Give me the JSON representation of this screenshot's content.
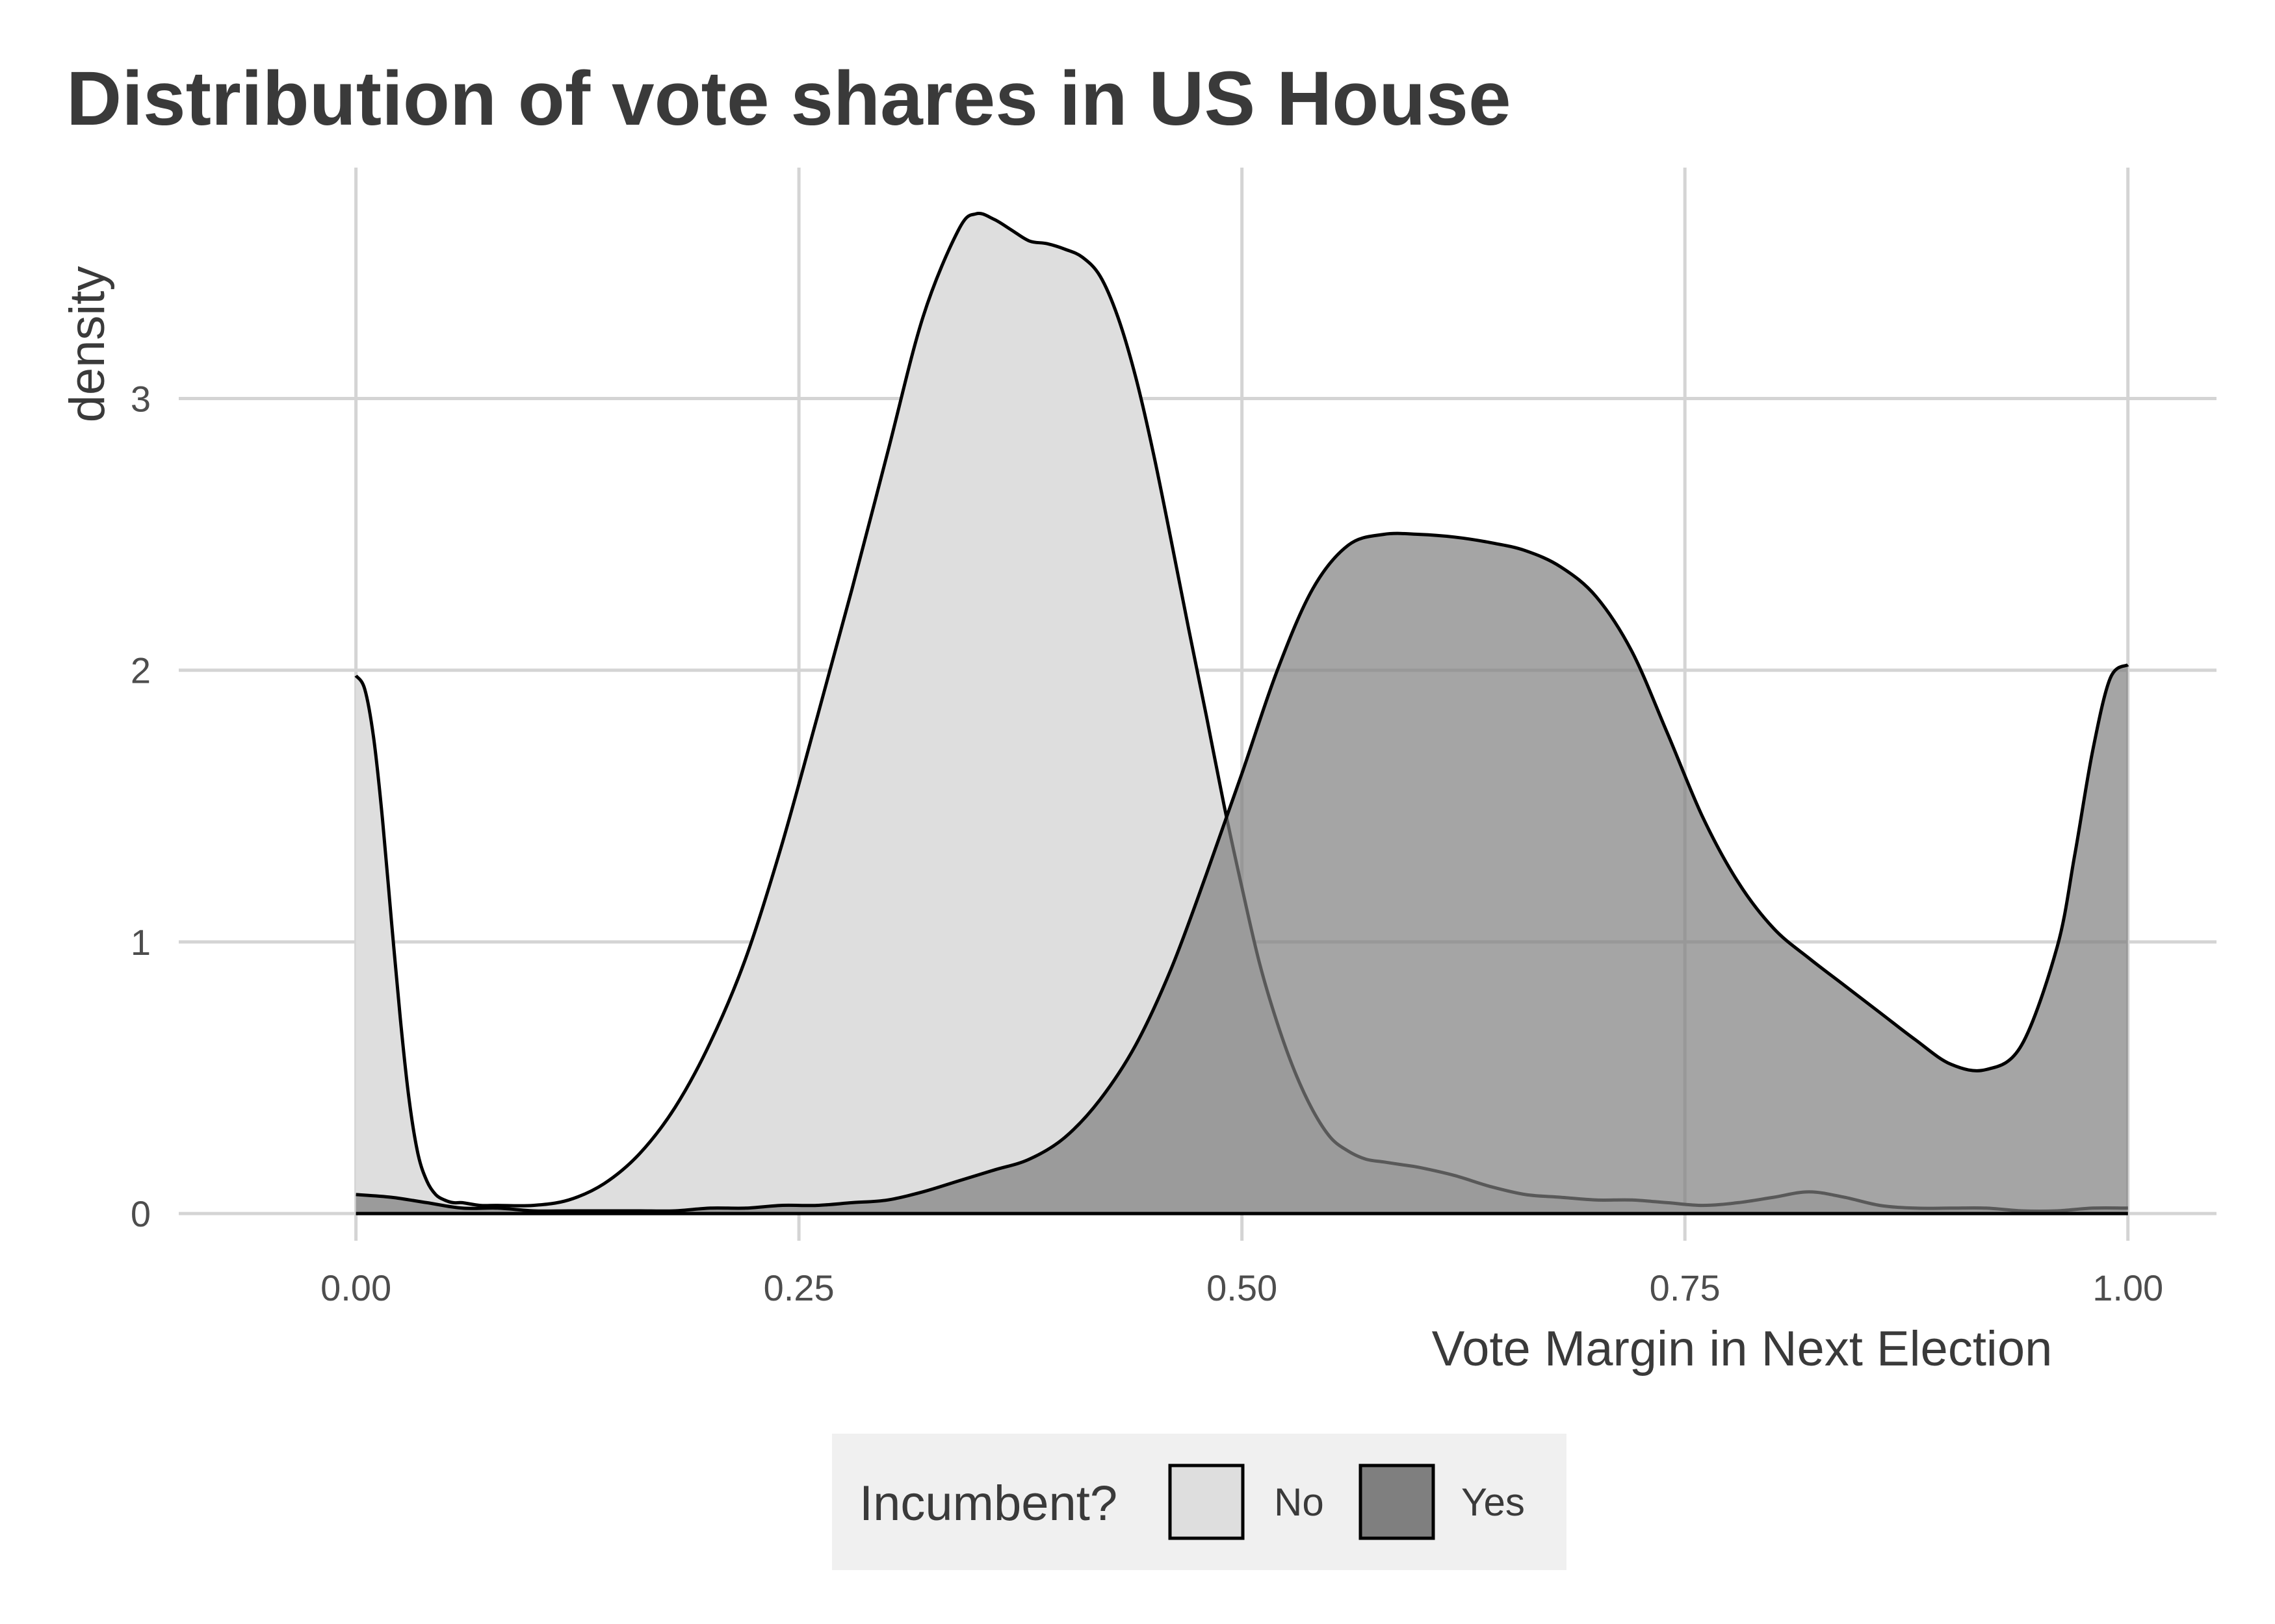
{
  "chart_data": {
    "type": "area",
    "title": "Distribution of vote shares in US House",
    "xlabel": "Vote Margin in Next Election",
    "ylabel": "density",
    "xlim": [
      -0.1,
      1.05
    ],
    "ylim": [
      -0.1,
      3.85
    ],
    "x_ticks": [
      0,
      0.25,
      0.5,
      0.75,
      1
    ],
    "x_tick_labels": [
      "0.00",
      "0.25",
      "0.50",
      "0.75",
      "1.00"
    ],
    "y_ticks": [
      0,
      1,
      2,
      3
    ],
    "y_tick_labels": [
      "0",
      "1",
      "2",
      "3"
    ],
    "grid": true,
    "legend": {
      "title": "Incumbent?",
      "placement": "bottom",
      "entries": [
        {
          "label": "No",
          "color": "#dedede"
        },
        {
          "label": "Yes",
          "color": "#7f7f7f"
        }
      ]
    },
    "series": [
      {
        "name": "No",
        "fill": "#dedede",
        "fill_opacity": 1,
        "x": [
          0,
          0.005,
          0.01,
          0.015,
          0.02,
          0.025,
          0.03,
          0.035,
          0.04,
          0.045,
          0.05,
          0.055,
          0.06,
          0.07,
          0.08,
          0.1,
          0.12,
          0.14,
          0.16,
          0.18,
          0.2,
          0.22,
          0.24,
          0.26,
          0.28,
          0.3,
          0.32,
          0.34,
          0.35,
          0.36,
          0.37,
          0.38,
          0.39,
          0.4,
          0.41,
          0.42,
          0.43,
          0.44,
          0.45,
          0.46,
          0.47,
          0.48,
          0.49,
          0.5,
          0.51,
          0.52,
          0.53,
          0.54,
          0.55,
          0.56,
          0.57,
          0.58,
          0.59,
          0.6,
          0.62,
          0.64,
          0.66,
          0.68,
          0.7,
          0.72,
          0.74,
          0.76,
          0.78,
          0.8,
          0.82,
          0.84,
          0.86,
          0.88,
          0.9,
          0.92,
          0.94,
          0.96,
          0.98,
          1.0
        ],
        "y": [
          1.98,
          1.93,
          1.75,
          1.45,
          1.08,
          0.72,
          0.42,
          0.22,
          0.12,
          0.07,
          0.05,
          0.04,
          0.04,
          0.03,
          0.03,
          0.03,
          0.05,
          0.11,
          0.22,
          0.39,
          0.63,
          0.94,
          1.35,
          1.82,
          2.3,
          2.8,
          3.3,
          3.62,
          3.68,
          3.66,
          3.62,
          3.58,
          3.57,
          3.55,
          3.52,
          3.45,
          3.3,
          3.08,
          2.8,
          2.48,
          2.15,
          1.83,
          1.5,
          1.2,
          0.92,
          0.7,
          0.52,
          0.38,
          0.28,
          0.23,
          0.2,
          0.19,
          0.18,
          0.17,
          0.14,
          0.1,
          0.07,
          0.06,
          0.05,
          0.05,
          0.04,
          0.03,
          0.04,
          0.06,
          0.08,
          0.06,
          0.03,
          0.02,
          0.02,
          0.02,
          0.01,
          0.01,
          0.02,
          0.02
        ]
      },
      {
        "name": "Yes",
        "fill": "#7f7f7f",
        "fill_opacity": 0.7,
        "x": [
          0,
          0.02,
          0.04,
          0.06,
          0.08,
          0.1,
          0.12,
          0.14,
          0.16,
          0.18,
          0.2,
          0.22,
          0.24,
          0.26,
          0.28,
          0.3,
          0.32,
          0.34,
          0.36,
          0.38,
          0.4,
          0.42,
          0.44,
          0.46,
          0.48,
          0.5,
          0.52,
          0.54,
          0.56,
          0.58,
          0.6,
          0.62,
          0.64,
          0.66,
          0.68,
          0.7,
          0.72,
          0.74,
          0.76,
          0.78,
          0.8,
          0.82,
          0.84,
          0.86,
          0.88,
          0.9,
          0.92,
          0.94,
          0.96,
          0.97,
          0.98,
          0.99,
          1.0
        ],
        "y": [
          0.07,
          0.06,
          0.04,
          0.02,
          0.02,
          0.01,
          0.01,
          0.01,
          0.01,
          0.01,
          0.02,
          0.02,
          0.03,
          0.03,
          0.04,
          0.05,
          0.08,
          0.12,
          0.16,
          0.2,
          0.28,
          0.42,
          0.62,
          0.9,
          1.25,
          1.62,
          2.0,
          2.3,
          2.46,
          2.5,
          2.5,
          2.49,
          2.47,
          2.44,
          2.38,
          2.27,
          2.07,
          1.77,
          1.46,
          1.22,
          1.05,
          0.94,
          0.84,
          0.74,
          0.64,
          0.55,
          0.53,
          0.62,
          0.98,
          1.32,
          1.7,
          1.97,
          2.02
        ]
      }
    ]
  }
}
